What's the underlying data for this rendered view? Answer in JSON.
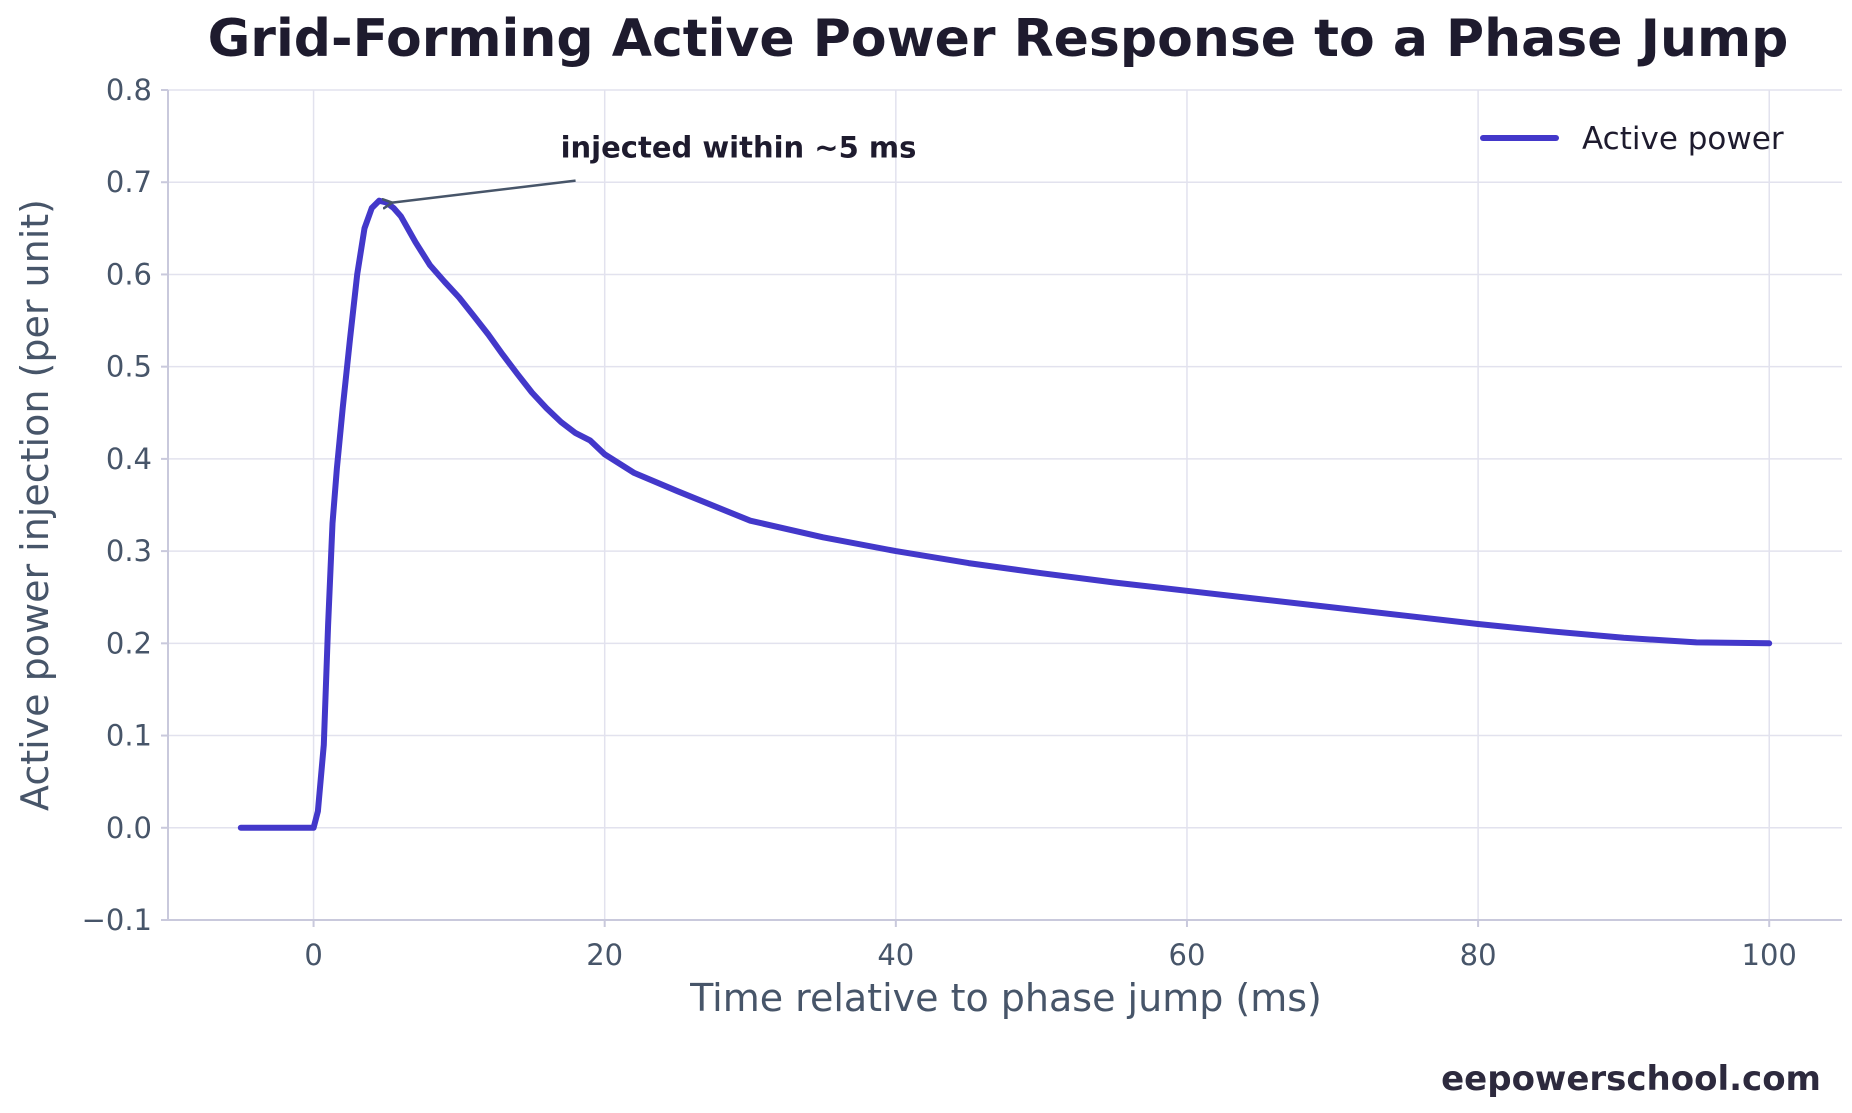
{
  "chart_data": {
    "type": "line",
    "title": "Grid-Forming Active Power Response to a Phase Jump",
    "xlabel": "Time relative to phase jump (ms)",
    "ylabel": "Active power injection (per unit)",
    "xlim": [
      -10,
      105
    ],
    "ylim": [
      -0.1,
      0.8
    ],
    "xticks": [
      0,
      20,
      40,
      60,
      80,
      100
    ],
    "xtick_labels": [
      "0",
      "20",
      "40",
      "60",
      "80",
      "100"
    ],
    "yticks": [
      -0.1,
      0.0,
      0.1,
      0.2,
      0.3,
      0.4,
      0.5,
      0.6,
      0.7,
      0.8
    ],
    "ytick_labels": [
      "−0.1",
      "0.0",
      "0.1",
      "0.2",
      "0.3",
      "0.4",
      "0.5",
      "0.6",
      "0.7",
      "0.8"
    ],
    "grid": true,
    "legend_position": "top-right",
    "series": [
      {
        "name": "Active power",
        "color": "#4338ca",
        "x": [
          -5,
          -4,
          -3,
          -2,
          -1,
          0,
          0.3,
          0.7,
          1.0,
          1.3,
          1.6,
          2.0,
          2.5,
          3.0,
          3.5,
          4.0,
          4.5,
          5.0,
          5.5,
          6.0,
          7.0,
          8.0,
          9.0,
          10.0,
          11.0,
          12.0,
          13.0,
          14.0,
          15.0,
          16.0,
          17.0,
          18.0,
          19.0,
          20.0,
          22.0,
          25.0,
          30.0,
          35.0,
          40.0,
          45.0,
          50.0,
          55.0,
          60.0,
          65.0,
          70.0,
          75.0,
          80.0,
          85.0,
          90.0,
          95.0,
          100.0
        ],
        "y": [
          0.0,
          0.0,
          0.0,
          0.0,
          0.0,
          0.0,
          0.018,
          0.09,
          0.22,
          0.33,
          0.39,
          0.455,
          0.53,
          0.6,
          0.65,
          0.672,
          0.68,
          0.678,
          0.672,
          0.663,
          0.635,
          0.61,
          0.592,
          0.575,
          0.555,
          0.535,
          0.513,
          0.492,
          0.472,
          0.455,
          0.44,
          0.428,
          0.42,
          0.405,
          0.385,
          0.365,
          0.333,
          0.315,
          0.3,
          0.287,
          0.276,
          0.266,
          0.257,
          0.248,
          0.239,
          0.23,
          0.221,
          0.213,
          0.206,
          0.201,
          0.2
        ]
      }
    ],
    "annotations": [
      {
        "text": "injected within ~5 ms",
        "point": [
          5,
          0.68
        ],
        "text_at": [
          18,
          0.705
        ]
      }
    ]
  },
  "watermark": "eepowerschool.com",
  "colors": {
    "line": "#4338ca",
    "title": "#1e1b2e",
    "axis_text": "#475569",
    "grid": "#e2e2ee",
    "arrow": "#475569"
  }
}
